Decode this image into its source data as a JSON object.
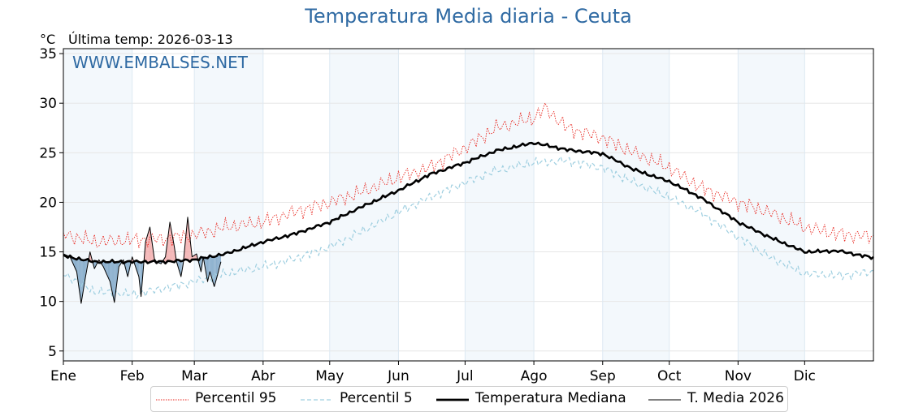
{
  "chart_data": {
    "type": "line",
    "title": "Temperatura Media diaria - Ceuta",
    "ylabel": "°C",
    "subtitle": "Última temp: 2026-03-13",
    "watermark": "WWW.EMBALSES.NET",
    "ylim": [
      4.0,
      35.5
    ],
    "yticks": [
      5,
      10,
      15,
      20,
      25,
      30,
      35
    ],
    "xlim": [
      1,
      366
    ],
    "month_labels": [
      "Ene",
      "Feb",
      "Mar",
      "Abr",
      "May",
      "Jun",
      "Jul",
      "Ago",
      "Sep",
      "Oct",
      "Nov",
      "Dic"
    ],
    "month_start_days": [
      1,
      32,
      60,
      91,
      121,
      152,
      182,
      213,
      244,
      274,
      305,
      335
    ],
    "shaded_months": [
      "Ene",
      "Mar",
      "May",
      "Jul",
      "Sep",
      "Nov"
    ],
    "grid": true,
    "legend_position": "bottom",
    "series": [
      {
        "name": "Percentil 95",
        "style": "dotted",
        "color": "#e8231b",
        "x": [
          1,
          15,
          32,
          46,
          60,
          74,
          91,
          105,
          121,
          135,
          152,
          166,
          182,
          196,
          213,
          218,
          228,
          244,
          258,
          274,
          288,
          305,
          319,
          335,
          350,
          366
        ],
        "y": [
          16.8,
          16.0,
          16.2,
          16.3,
          16.7,
          17.5,
          18.0,
          19.0,
          20.0,
          21.0,
          22.5,
          23.5,
          25.5,
          27.5,
          28.5,
          29.5,
          27.5,
          26.5,
          25.0,
          23.5,
          21.5,
          20.0,
          19.0,
          17.5,
          16.8,
          16.5
        ]
      },
      {
        "name": "Percentil 5",
        "style": "dashed",
        "color": "#9fcfe0",
        "x": [
          1,
          15,
          32,
          46,
          60,
          74,
          91,
          105,
          121,
          135,
          152,
          166,
          182,
          196,
          213,
          228,
          244,
          258,
          274,
          288,
          305,
          319,
          335,
          350,
          366
        ],
        "y": [
          12.8,
          11.0,
          10.7,
          11.3,
          12.0,
          12.8,
          13.5,
          14.3,
          15.5,
          17.0,
          19.0,
          20.5,
          22.0,
          23.2,
          24.0,
          24.2,
          23.5,
          22.0,
          20.5,
          19.0,
          16.5,
          14.5,
          12.8,
          12.6,
          13.0
        ]
      },
      {
        "name": "Temperatura Mediana",
        "style": "solid-thick",
        "color": "#000000",
        "x": [
          1,
          15,
          32,
          46,
          60,
          74,
          91,
          105,
          121,
          135,
          152,
          166,
          182,
          196,
          213,
          228,
          244,
          258,
          274,
          288,
          305,
          319,
          335,
          350,
          366
        ],
        "y": [
          14.6,
          14.0,
          14.0,
          14.0,
          14.2,
          14.8,
          16.0,
          16.8,
          18.0,
          19.5,
          21.2,
          22.8,
          24.0,
          25.2,
          26.0,
          25.3,
          24.9,
          23.3,
          22.1,
          20.5,
          18.0,
          16.5,
          15.0,
          15.1,
          14.4
        ]
      },
      {
        "name": "T. Media 2026",
        "style": "solid-thin",
        "color": "#000000",
        "x": [
          1,
          4,
          7,
          9,
          11,
          13,
          15,
          17,
          19,
          22,
          24,
          26,
          28,
          30,
          32,
          35,
          36,
          38,
          40,
          42,
          43,
          45,
          47,
          49,
          51,
          52,
          54,
          55,
          57,
          59,
          61,
          63,
          64,
          66,
          67,
          69,
          70,
          72
        ],
        "y": [
          14.8,
          14.5,
          13.0,
          9.8,
          12.5,
          15.0,
          13.3,
          14.2,
          13.5,
          12.0,
          9.9,
          13.5,
          14.2,
          12.5,
          14.5,
          12.5,
          10.5,
          16.0,
          17.5,
          14.3,
          14.0,
          13.8,
          14.5,
          18.0,
          15.5,
          14.0,
          12.5,
          13.8,
          18.5,
          14.5,
          14.8,
          13.0,
          14.5,
          12.0,
          13.0,
          11.5,
          12.3,
          14.0
        ]
      }
    ]
  },
  "legend": {
    "items": [
      {
        "label": "Percentil 95"
      },
      {
        "label": "Percentil 5"
      },
      {
        "label": "Temperatura Mediana"
      },
      {
        "label": "T. Media 2026"
      }
    ]
  }
}
